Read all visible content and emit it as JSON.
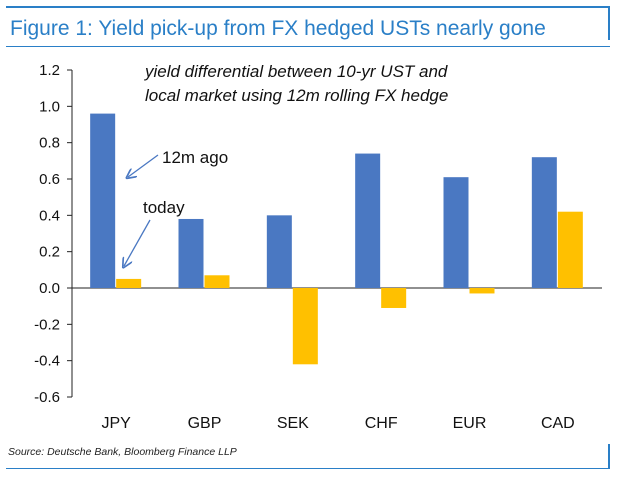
{
  "header": {
    "title": "Figure 1: Yield pick-up from FX hedged USTs nearly gone"
  },
  "footer": {
    "source": "Source: Deutsche Bank, Bloomberg Finance LLP"
  },
  "annotations": {
    "note_line1": "yield differential between 10-yr UST and",
    "note_line2": "local market using 12m rolling FX hedge",
    "label_12m": "12m ago",
    "label_today": "today"
  },
  "colors": {
    "accent": "#2a7fc7",
    "series_12m": "#4a78c2",
    "series_today": "#ffc000"
  },
  "chart_data": {
    "type": "bar",
    "title": "Figure 1: Yield pick-up from FX hedged USTs nearly gone",
    "xlabel": "",
    "ylabel": "",
    "categories": [
      "JPY",
      "GBP",
      "SEK",
      "CHF",
      "EUR",
      "CAD"
    ],
    "series": [
      {
        "name": "12m ago",
        "values": [
          0.96,
          0.38,
          0.4,
          0.74,
          0.61,
          0.72
        ]
      },
      {
        "name": "today",
        "values": [
          0.05,
          0.07,
          -0.42,
          -0.11,
          -0.03,
          0.42
        ]
      }
    ],
    "ylim": [
      -0.6,
      1.2
    ],
    "yticks": [
      "1.2",
      "1.0",
      "0.8",
      "0.6",
      "0.4",
      "0.2",
      "0.0",
      "-0.2",
      "-0.4",
      "-0.6"
    ],
    "ytick_values": [
      1.2,
      1.0,
      0.8,
      0.6,
      0.4,
      0.2,
      0.0,
      -0.2,
      -0.4,
      -0.6
    ],
    "grid": false,
    "legend": "none"
  }
}
